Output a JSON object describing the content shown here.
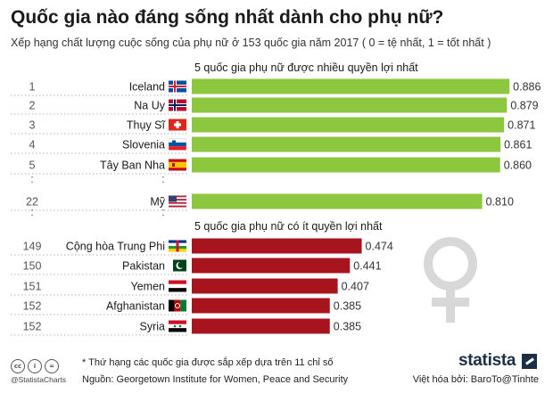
{
  "title": "Quốc gia nào đáng sống nhất dành cho phụ nữ?",
  "subtitle": "Xếp hạng chất lượng cuộc sống của phụ nữ ở 153 quốc gia năm 2017 ( 0 = tệ nhất, 1 = tốt nhất )",
  "colors": {
    "top_bar": "#8dc63f",
    "bottom_bar": "#a8141d",
    "female_symbol": "#d8d8d8"
  },
  "chart_data": {
    "type": "bar",
    "orientation": "horizontal",
    "xlim": [
      0,
      1
    ],
    "groups": [
      {
        "label": "5 quốc gia phụ nữ được nhiều quyền lợi nhất",
        "rows": [
          {
            "rank": "1",
            "country": "Iceland",
            "value": 0.886,
            "label": "0.886",
            "flag": "iceland-flag"
          },
          {
            "rank": "2",
            "country": "Na Uy",
            "value": 0.879,
            "label": "0.879",
            "flag": "norway-flag"
          },
          {
            "rank": "3",
            "country": "Thụy Sĩ",
            "value": 0.871,
            "label": "0.871",
            "flag": "switzerland-flag"
          },
          {
            "rank": "4",
            "country": "Slovenia",
            "value": 0.861,
            "label": "0.861",
            "flag": "slovenia-flag"
          },
          {
            "rank": "5",
            "country": "Tây Ban Nha",
            "value": 0.86,
            "label": "0.860",
            "flag": "spain-flag"
          },
          {
            "rank": "22",
            "country": "Mỹ",
            "value": 0.81,
            "label": "0.810",
            "flag": "usa-flag"
          }
        ]
      },
      {
        "label": "5 quốc gia phụ nữ có ít quyền lợi nhất",
        "rows": [
          {
            "rank": "149",
            "country": "Cộng hòa Trung Phi",
            "value": 0.474,
            "label": "0.474",
            "flag": "central-african-republic-flag"
          },
          {
            "rank": "150",
            "country": "Pakistan",
            "value": 0.441,
            "label": "0.441",
            "flag": "pakistan-flag"
          },
          {
            "rank": "151",
            "country": "Yemen",
            "value": 0.407,
            "label": "0.407",
            "flag": "yemen-flag"
          },
          {
            "rank": "152",
            "country": "Afghanistan",
            "value": 0.385,
            "label": "0.385",
            "flag": "afghanistan-flag"
          },
          {
            "rank": "152",
            "country": "Syria",
            "value": 0.385,
            "label": "0.385",
            "flag": "syria-flag"
          }
        ]
      }
    ]
  },
  "ellipsis": ":",
  "footer": {
    "note": "* Thứ hạng các quốc gia được sắp xếp dựa trên 11 chỉ số",
    "source": "Nguồn: Georgetown Institute for Women, Peace and Security",
    "credit": "Việt hóa bởi: BaroTo@Tinhte",
    "handle": "@StatistaCharts",
    "brand": "statista",
    "cc_icons": [
      "cc",
      "i",
      "="
    ]
  }
}
